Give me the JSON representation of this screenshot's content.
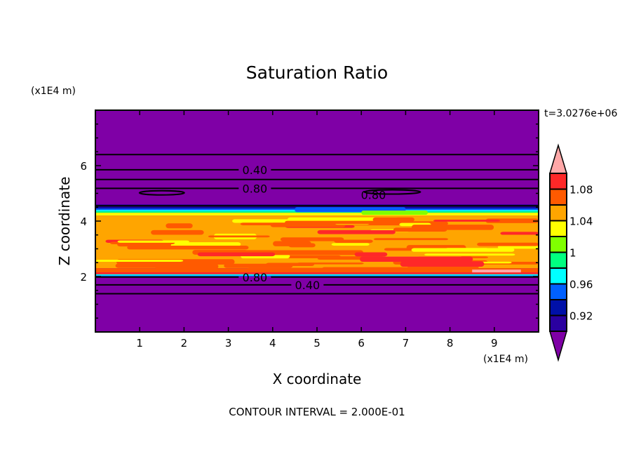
{
  "chart_data": {
    "type": "contour",
    "title": "Saturation Ratio",
    "xlabel": "X coordinate",
    "ylabel": "Z coordinate",
    "x_unit_label": "(x1E4 m)",
    "y_unit_label": "(x1E4 m)",
    "time_label": "t=3.0276e+06",
    "footer": "CONTOUR INTERVAL = 2.000E-01",
    "xlim": [
      0,
      10
    ],
    "ylim": [
      0,
      8
    ],
    "xticks": [
      1,
      2,
      3,
      4,
      5,
      6,
      7,
      8,
      9
    ],
    "yticks": [
      2,
      4,
      6
    ],
    "background_color": "#7f00a6",
    "fill_bands": [
      {
        "z0": 4.5,
        "z1": 4.6,
        "color": "#2a00a0"
      },
      {
        "z0": 4.45,
        "z1": 4.5,
        "color": "#0010a8"
      },
      {
        "z0": 4.4,
        "z1": 4.45,
        "color": "#0060ff"
      },
      {
        "z0": 4.35,
        "z1": 4.4,
        "color": "#00ffff"
      },
      {
        "z0": 4.3,
        "z1": 4.35,
        "color": "#00ff80"
      },
      {
        "z0": 4.2,
        "z1": 4.3,
        "color": "#ffff00"
      },
      {
        "z0": 2.3,
        "z1": 4.2,
        "color": "#ffa500"
      },
      {
        "z0": 2.15,
        "z1": 2.3,
        "color": "#ff5a00"
      },
      {
        "z0": 2.08,
        "z1": 2.15,
        "color": "#ff2828"
      },
      {
        "z0": 2.03,
        "z1": 2.08,
        "color": "#00ffff"
      },
      {
        "z0": 2.0,
        "z1": 2.03,
        "color": "#0060ff"
      }
    ],
    "contour_lines": [
      {
        "z": 6.4,
        "label": ""
      },
      {
        "z": 5.85,
        "label": "0.40"
      },
      {
        "z": 5.5,
        "label": ""
      },
      {
        "z": 5.18,
        "label": "0.80"
      },
      {
        "z": 4.55,
        "label": ""
      },
      {
        "z": 1.98,
        "label": "0.80"
      },
      {
        "z": 1.7,
        "label": "0.40"
      },
      {
        "z": 1.38,
        "label": ""
      }
    ],
    "closed_contours": [
      {
        "x": 1.5,
        "z": 5.02,
        "label": ""
      },
      {
        "x": 6.7,
        "z": 5.05,
        "label": "0.80"
      }
    ],
    "colorbar": {
      "levels": [
        0.9,
        0.92,
        0.94,
        0.96,
        0.98,
        1.0,
        1.02,
        1.04,
        1.06,
        1.08,
        1.1
      ],
      "colors": [
        "#2a00a0",
        "#0010a8",
        "#0060ff",
        "#00ffff",
        "#00ff80",
        "#80ff00",
        "#ffff00",
        "#ffa500",
        "#ff5a00",
        "#ff2828"
      ],
      "under_color": "#7f00a6",
      "over_color": "#ffa8a8",
      "tick_labels": [
        {
          "value": 0.92,
          "label": "0.92"
        },
        {
          "value": 0.96,
          "label": "0.96"
        },
        {
          "value": 1.0,
          "label": "1"
        },
        {
          "value": 1.04,
          "label": "1.04"
        },
        {
          "value": 1.08,
          "label": "1.08"
        }
      ]
    }
  }
}
